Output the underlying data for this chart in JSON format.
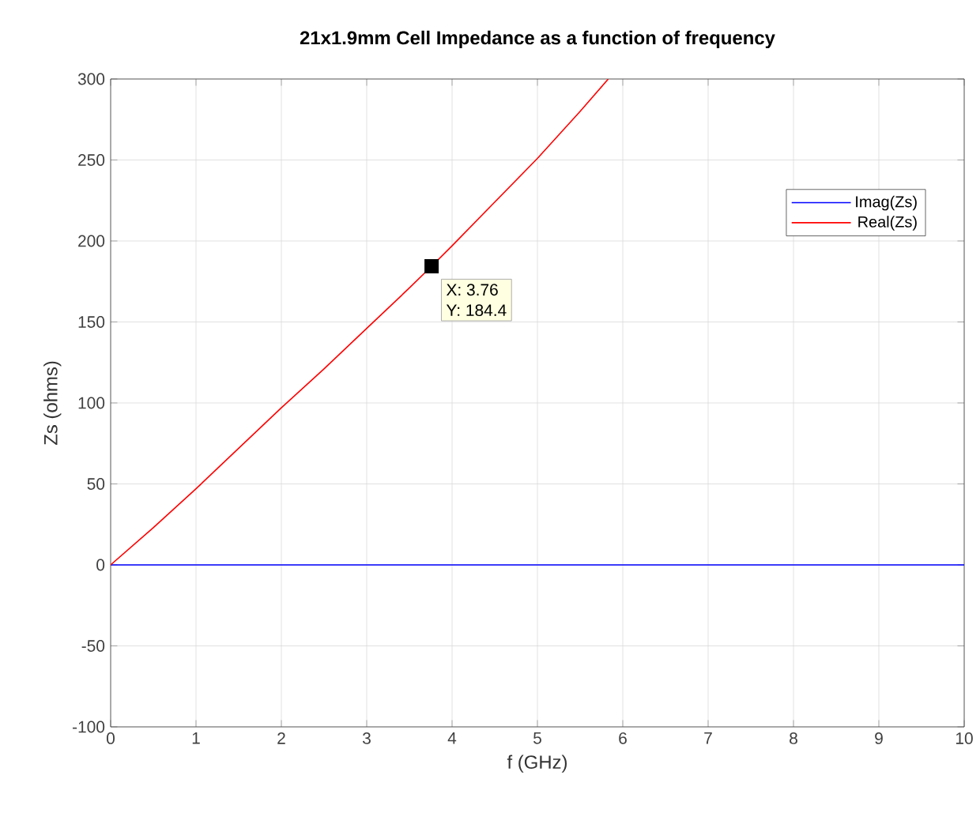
{
  "chart_data": {
    "type": "line",
    "title": "21x1.9mm Cell Impedance as a function of frequency",
    "xlabel": "f (GHz)",
    "ylabel": "Zs (ohms)",
    "xlim": [
      0,
      10
    ],
    "ylim": [
      -100,
      300
    ],
    "xticks": [
      0,
      1,
      2,
      3,
      4,
      5,
      6,
      7,
      8,
      9,
      10
    ],
    "yticks": [
      -100,
      -50,
      0,
      50,
      100,
      150,
      200,
      250,
      300
    ],
    "grid": true,
    "legend": "top right",
    "marker": "none",
    "line_style": "solid",
    "series": [
      {
        "name": "Imag(Zs)",
        "color": "#0000ff",
        "x": [
          0,
          10
        ],
        "values": [
          0,
          0
        ]
      },
      {
        "name": "Real(Zs)",
        "color": "#ff0000",
        "x": [
          0,
          0.5,
          1,
          1.5,
          2,
          2.5,
          3,
          3.5,
          3.76,
          4,
          4.5,
          5,
          5.5,
          5.83
        ],
        "values": [
          0,
          23,
          47,
          72,
          97,
          121,
          146,
          171,
          184.4,
          197,
          224,
          251,
          280,
          300
        ]
      }
    ],
    "annotations": [
      {
        "text": "X: 3.76",
        "x": 3.76,
        "y": 184.4
      },
      {
        "text": "Y: 184.4",
        "x": 3.76,
        "y": 184.4
      }
    ]
  }
}
